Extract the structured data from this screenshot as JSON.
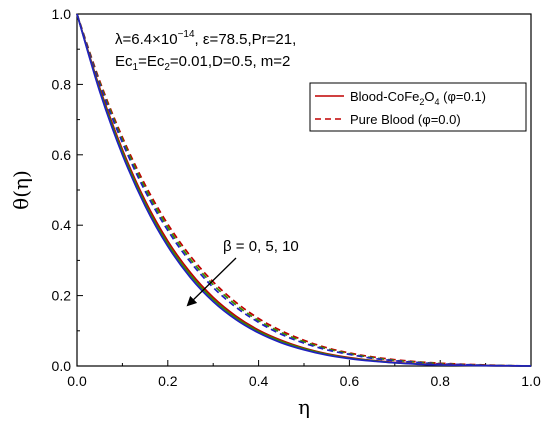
{
  "chart_data": {
    "type": "line",
    "title": "",
    "xlabel": "η",
    "ylabel": "θ(η)",
    "xlim": [
      0.0,
      1.0
    ],
    "ylim": [
      0.0,
      1.0
    ],
    "xticks": [
      "0.0",
      "0.2",
      "0.4",
      "0.6",
      "0.8",
      "1.0"
    ],
    "yticks": [
      "0.0",
      "0.2",
      "0.4",
      "0.6",
      "0.8",
      "1.0"
    ],
    "grid": false,
    "legend_position": "top-right",
    "parameters": {
      "line1_prefix": "λ=6.4×10",
      "line1_exp": "−14",
      "line1_rest": ", ε=78.5,Pr=21,",
      "line2_a": "Ec",
      "line2_sub1": "1",
      "line2_b": "=Ec",
      "line2_sub2": "2",
      "line2_c": "=0.01,D=0.5, m=2"
    },
    "legend": [
      {
        "label_main": "Blood-CoFe",
        "label_sub": "2",
        "label_mid": "O",
        "label_sub2": "4",
        "label_tail": " (φ=0.1)",
        "style": "solid",
        "color": "#c00000"
      },
      {
        "label_main": "Pure Blood (φ=0.0)",
        "label_sub": "",
        "label_mid": "",
        "label_sub2": "",
        "label_tail": "",
        "style": "dashed",
        "color": "#c00000"
      }
    ],
    "annotation": "β = 0, 5, 10",
    "x": [
      0.0,
      0.05,
      0.1,
      0.15,
      0.2,
      0.25,
      0.3,
      0.35,
      0.4,
      0.45,
      0.5,
      0.55,
      0.6,
      0.65,
      0.7,
      0.75,
      0.8,
      0.85,
      0.9,
      0.95,
      1.0
    ],
    "series": [
      {
        "beta": 0,
        "variant": "phi=0.1",
        "style": "solid",
        "color": "#c00000",
        "values": [
          1.0,
          0.79,
          0.615,
          0.47,
          0.355,
          0.265,
          0.195,
          0.142,
          0.102,
          0.073,
          0.051,
          0.035,
          0.024,
          0.016,
          0.01,
          0.006,
          0.004,
          0.002,
          0.001,
          0.0005,
          0.0
        ]
      },
      {
        "beta": 5,
        "variant": "phi=0.1",
        "style": "solid",
        "color": "#3a8a00",
        "values": [
          1.0,
          0.785,
          0.608,
          0.462,
          0.347,
          0.258,
          0.189,
          0.137,
          0.098,
          0.07,
          0.049,
          0.033,
          0.022,
          0.015,
          0.009,
          0.006,
          0.003,
          0.002,
          0.001,
          0.0005,
          0.0
        ]
      },
      {
        "beta": 10,
        "variant": "phi=0.1",
        "style": "solid",
        "color": "#2020c0",
        "values": [
          1.0,
          0.78,
          0.6,
          0.455,
          0.34,
          0.251,
          0.183,
          0.132,
          0.094,
          0.066,
          0.046,
          0.031,
          0.021,
          0.014,
          0.009,
          0.005,
          0.003,
          0.002,
          0.001,
          0.0005,
          0.0
        ]
      },
      {
        "beta": 0,
        "variant": "phi=0.0",
        "style": "dashed",
        "color": "#c00000",
        "values": [
          1.0,
          0.81,
          0.65,
          0.515,
          0.403,
          0.312,
          0.239,
          0.181,
          0.135,
          0.1,
          0.073,
          0.052,
          0.037,
          0.026,
          0.018,
          0.012,
          0.008,
          0.005,
          0.003,
          0.001,
          0.0
        ]
      },
      {
        "beta": 5,
        "variant": "phi=0.0",
        "style": "dashed",
        "color": "#3a8a00",
        "values": [
          1.0,
          0.805,
          0.643,
          0.506,
          0.394,
          0.303,
          0.231,
          0.174,
          0.129,
          0.095,
          0.069,
          0.049,
          0.035,
          0.024,
          0.016,
          0.011,
          0.007,
          0.004,
          0.002,
          0.001,
          0.0
        ]
      },
      {
        "beta": 10,
        "variant": "phi=0.0",
        "style": "dashed",
        "color": "#2020c0",
        "values": [
          1.0,
          0.8,
          0.635,
          0.497,
          0.385,
          0.295,
          0.223,
          0.167,
          0.124,
          0.09,
          0.065,
          0.046,
          0.033,
          0.022,
          0.015,
          0.01,
          0.006,
          0.004,
          0.002,
          0.001,
          0.0
        ]
      }
    ]
  }
}
